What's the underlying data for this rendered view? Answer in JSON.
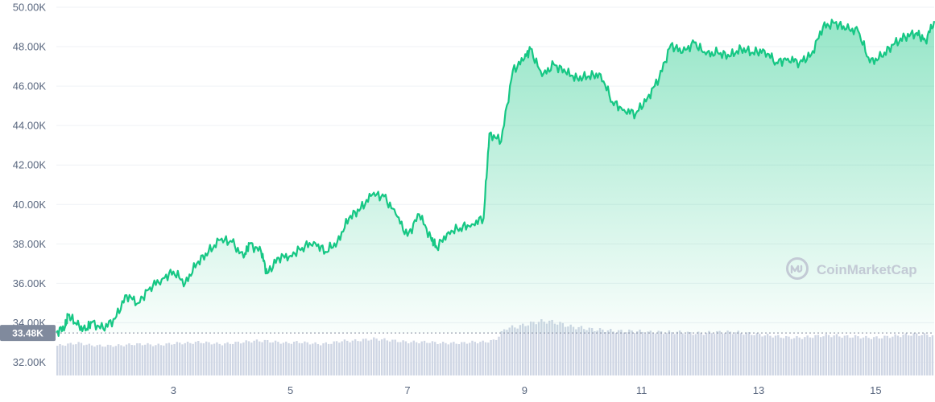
{
  "chart_data": {
    "type": "area",
    "title": "",
    "xlabel": "",
    "ylabel": "",
    "y_ticks": [
      "50.00K",
      "48.00K",
      "46.00K",
      "44.00K",
      "42.00K",
      "40.00K",
      "38.00K",
      "36.00K",
      "34.00K",
      "32.00K"
    ],
    "x_ticks": [
      "3",
      "5",
      "7",
      "9",
      "11",
      "13",
      "15"
    ],
    "xlim": [
      1,
      16
    ],
    "ylim": [
      31,
      50
    ],
    "current_value_label": "33.48K",
    "current_value": 33.48,
    "series": [
      {
        "values": [
          {
            "x": 1.0,
            "y": 33.5
          },
          {
            "x": 1.15,
            "y": 33.8
          },
          {
            "x": 1.2,
            "y": 34.4
          },
          {
            "x": 1.35,
            "y": 33.9
          },
          {
            "x": 1.5,
            "y": 33.6
          },
          {
            "x": 1.6,
            "y": 34.0
          },
          {
            "x": 1.8,
            "y": 33.7
          },
          {
            "x": 2.0,
            "y": 34.2
          },
          {
            "x": 2.2,
            "y": 35.4
          },
          {
            "x": 2.4,
            "y": 35.0
          },
          {
            "x": 2.6,
            "y": 35.8
          },
          {
            "x": 2.8,
            "y": 36.2
          },
          {
            "x": 3.0,
            "y": 36.6
          },
          {
            "x": 3.2,
            "y": 36.0
          },
          {
            "x": 3.4,
            "y": 37.0
          },
          {
            "x": 3.6,
            "y": 37.6
          },
          {
            "x": 3.8,
            "y": 38.2
          },
          {
            "x": 4.0,
            "y": 38.1
          },
          {
            "x": 4.2,
            "y": 37.3
          },
          {
            "x": 4.3,
            "y": 38.0
          },
          {
            "x": 4.5,
            "y": 37.6
          },
          {
            "x": 4.6,
            "y": 36.5
          },
          {
            "x": 4.8,
            "y": 37.3
          },
          {
            "x": 5.0,
            "y": 37.4
          },
          {
            "x": 5.2,
            "y": 37.8
          },
          {
            "x": 5.4,
            "y": 38.1
          },
          {
            "x": 5.6,
            "y": 37.6
          },
          {
            "x": 5.8,
            "y": 38.1
          },
          {
            "x": 6.0,
            "y": 39.3
          },
          {
            "x": 6.2,
            "y": 39.8
          },
          {
            "x": 6.4,
            "y": 40.5
          },
          {
            "x": 6.6,
            "y": 40.4
          },
          {
            "x": 6.8,
            "y": 39.5
          },
          {
            "x": 7.0,
            "y": 38.4
          },
          {
            "x": 7.2,
            "y": 39.5
          },
          {
            "x": 7.4,
            "y": 38.3
          },
          {
            "x": 7.5,
            "y": 37.8
          },
          {
            "x": 7.7,
            "y": 38.6
          },
          {
            "x": 7.9,
            "y": 38.8
          },
          {
            "x": 8.1,
            "y": 39.0
          },
          {
            "x": 8.3,
            "y": 39.3
          },
          {
            "x": 8.4,
            "y": 43.6
          },
          {
            "x": 8.6,
            "y": 43.2
          },
          {
            "x": 8.8,
            "y": 46.8
          },
          {
            "x": 9.0,
            "y": 47.4
          },
          {
            "x": 9.1,
            "y": 47.9
          },
          {
            "x": 9.3,
            "y": 46.5
          },
          {
            "x": 9.5,
            "y": 47.1
          },
          {
            "x": 9.7,
            "y": 46.7
          },
          {
            "x": 9.9,
            "y": 46.4
          },
          {
            "x": 10.1,
            "y": 46.5
          },
          {
            "x": 10.3,
            "y": 46.6
          },
          {
            "x": 10.5,
            "y": 45.2
          },
          {
            "x": 10.7,
            "y": 44.8
          },
          {
            "x": 10.9,
            "y": 44.6
          },
          {
            "x": 11.1,
            "y": 45.4
          },
          {
            "x": 11.3,
            "y": 46.4
          },
          {
            "x": 11.5,
            "y": 48.1
          },
          {
            "x": 11.7,
            "y": 47.7
          },
          {
            "x": 11.9,
            "y": 48.2
          },
          {
            "x": 12.1,
            "y": 47.6
          },
          {
            "x": 12.3,
            "y": 47.7
          },
          {
            "x": 12.5,
            "y": 47.5
          },
          {
            "x": 12.7,
            "y": 47.9
          },
          {
            "x": 12.9,
            "y": 47.7
          },
          {
            "x": 13.1,
            "y": 47.8
          },
          {
            "x": 13.3,
            "y": 47.2
          },
          {
            "x": 13.5,
            "y": 47.4
          },
          {
            "x": 13.7,
            "y": 47.2
          },
          {
            "x": 13.9,
            "y": 47.6
          },
          {
            "x": 14.1,
            "y": 49.0
          },
          {
            "x": 14.3,
            "y": 49.2
          },
          {
            "x": 14.5,
            "y": 48.9
          },
          {
            "x": 14.7,
            "y": 48.8
          },
          {
            "x": 14.9,
            "y": 47.2
          },
          {
            "x": 15.1,
            "y": 47.5
          },
          {
            "x": 15.3,
            "y": 48.1
          },
          {
            "x": 15.5,
            "y": 48.5
          },
          {
            "x": 15.7,
            "y": 48.7
          },
          {
            "x": 15.85,
            "y": 48.3
          },
          {
            "x": 16.0,
            "y": 49.3
          }
        ]
      }
    ],
    "volume_values": [
      0.55,
      0.58,
      0.6,
      0.56,
      0.55,
      0.55,
      0.56,
      0.58,
      0.58,
      0.56,
      0.58,
      0.6,
      0.6,
      0.62,
      0.6,
      0.58,
      0.6,
      0.62,
      0.64,
      0.64,
      0.62,
      0.6,
      0.62,
      0.6,
      0.58,
      0.6,
      0.64,
      0.64,
      0.66,
      0.68,
      0.66,
      0.64,
      0.62,
      0.62,
      0.62,
      0.6,
      0.6,
      0.6,
      0.62,
      0.62,
      0.65,
      0.88,
      0.9,
      0.95,
      1.0,
      1.0,
      0.96,
      0.9,
      0.88,
      0.85,
      0.84,
      0.82,
      0.82,
      0.82,
      0.8,
      0.8,
      0.8,
      0.8,
      0.78,
      0.78,
      0.8,
      0.8,
      0.8,
      0.78,
      0.76,
      0.74,
      0.72,
      0.7,
      0.7,
      0.72,
      0.74,
      0.74,
      0.72,
      0.72,
      0.7,
      0.7,
      0.72,
      0.74,
      0.76,
      0.76,
      0.74
    ],
    "colors": {
      "line": "#16c784",
      "area_top": "#16c784",
      "area_bottom": "#16c784",
      "volume": "#cfd6e4",
      "grid": "#eff2f5",
      "tick_label": "#58667e",
      "badge_bg": "#808a9d"
    },
    "grid": true
  },
  "watermark": {
    "text": "CoinMarketCap",
    "icon": "coinmarketcap-logo-icon"
  }
}
